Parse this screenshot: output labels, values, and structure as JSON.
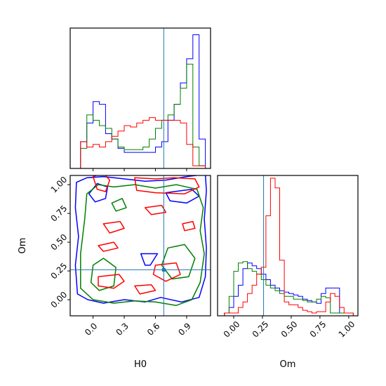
{
  "chart_data": {
    "type": "corner",
    "parameters": [
      "H0",
      "Om"
    ],
    "truth": {
      "H0": 0.68,
      "Om": 0.26
    },
    "truth_color": "#1f77b4",
    "series_colors": [
      "#0000ff",
      "#008000",
      "#ff0000"
    ],
    "axes": {
      "H0": {
        "label": "H0",
        "range": [
          -0.22,
          1.13
        ],
        "ticks": [
          0.0,
          0.3,
          0.6,
          0.9
        ],
        "tick_labels": [
          "0.0",
          "0.3",
          "0.6",
          "0.9"
        ]
      },
      "Om": {
        "label": "Om",
        "range": [
          -0.14,
          1.08
        ],
        "ticks": [
          0.0,
          0.25,
          0.5,
          0.75,
          1.0
        ],
        "tick_labels": [
          "0.00",
          "0.25",
          "0.50",
          "0.75",
          "1.00"
        ]
      }
    },
    "hist_H0": {
      "bin_edges": [
        -0.12,
        -0.06,
        0.0,
        0.06,
        0.12,
        0.18,
        0.24,
        0.3,
        0.36,
        0.42,
        0.48,
        0.54,
        0.6,
        0.66,
        0.72,
        0.78,
        0.84,
        0.9,
        0.96,
        1.02,
        1.08
      ],
      "series": [
        {
          "color": "#0000ff",
          "values": [
            0.2,
            0.34,
            0.5,
            0.48,
            0.26,
            0.22,
            0.15,
            0.12,
            0.12,
            0.12,
            0.12,
            0.12,
            0.16,
            0.2,
            0.36,
            0.48,
            0.64,
            0.82,
            1.0,
            0.22
          ]
        },
        {
          "color": "#008000",
          "values": [
            0.15,
            0.4,
            0.36,
            0.32,
            0.3,
            0.22,
            0.16,
            0.14,
            0.14,
            0.14,
            0.16,
            0.22,
            0.3,
            0.36,
            0.4,
            0.48,
            0.6,
            0.78,
            0.16,
            0.02
          ]
        },
        {
          "color": "#ff0000",
          "values": [
            0.2,
            0.16,
            0.18,
            0.16,
            0.2,
            0.24,
            0.28,
            0.32,
            0.31,
            0.34,
            0.36,
            0.38,
            0.36,
            0.36,
            0.36,
            0.36,
            0.34,
            0.18,
            0.02,
            0.02
          ]
        }
      ]
    },
    "hist_Om": {
      "bin_edges": [
        -0.08,
        -0.04,
        0.0,
        0.04,
        0.08,
        0.12,
        0.16,
        0.2,
        0.24,
        0.28,
        0.32,
        0.36,
        0.4,
        0.44,
        0.48,
        0.52,
        0.56,
        0.6,
        0.64,
        0.68,
        0.72,
        0.76,
        0.8,
        0.84,
        0.88,
        0.92,
        0.96,
        1.0,
        1.04
      ],
      "series": [
        {
          "color": "#0000ff",
          "values": [
            0.02,
            0.06,
            0.14,
            0.22,
            0.34,
            0.38,
            0.36,
            0.34,
            0.3,
            0.26,
            0.22,
            0.2,
            0.18,
            0.17,
            0.16,
            0.15,
            0.14,
            0.12,
            0.11,
            0.1,
            0.09,
            0.16,
            0.2,
            0.2,
            0.2,
            0.02,
            0.02,
            0.02
          ]
        },
        {
          "color": "#008000",
          "values": [
            0.02,
            0.14,
            0.32,
            0.38,
            0.39,
            0.34,
            0.32,
            0.3,
            0.26,
            0.22,
            0.2,
            0.18,
            0.16,
            0.14,
            0.14,
            0.12,
            0.12,
            0.11,
            0.1,
            0.1,
            0.12,
            0.14,
            0.13,
            0.02,
            0.02,
            0.02,
            0.02,
            0.02
          ]
        },
        {
          "color": "#ff0000",
          "values": [
            0.02,
            0.02,
            0.02,
            0.06,
            0.1,
            0.16,
            0.22,
            0.3,
            0.35,
            0.72,
            0.99,
            0.92,
            0.4,
            0.1,
            0.08,
            0.08,
            0.06,
            0.04,
            0.03,
            0.02,
            0.03,
            0.03,
            0.1,
            0.16,
            0.14,
            0.06,
            0.02,
            0.02
          ]
        }
      ]
    },
    "contours": [
      {
        "color": "#0000ff",
        "paths": [
          [
            [
              -0.16,
              1.02
            ],
            [
              -0.06,
              1.06
            ],
            [
              0.1,
              1.07
            ],
            [
              0.3,
              1.05
            ],
            [
              0.5,
              1.03
            ],
            [
              0.7,
              1.04
            ],
            [
              0.9,
              1.07
            ],
            [
              1.08,
              1.09
            ],
            [
              1.09,
              0.95
            ],
            [
              1.07,
              0.7
            ],
            [
              1.09,
              0.45
            ],
            [
              1.08,
              0.2
            ],
            [
              1.02,
              0.02
            ],
            [
              0.85,
              -0.02
            ],
            [
              0.65,
              0.02
            ],
            [
              0.5,
              -0.02
            ],
            [
              0.3,
              0.0
            ],
            [
              0.1,
              -0.03
            ],
            [
              -0.05,
              0.0
            ],
            [
              -0.15,
              0.05
            ],
            [
              -0.17,
              0.3
            ],
            [
              -0.14,
              0.55
            ],
            [
              -0.17,
              0.8
            ],
            [
              -0.16,
              1.02
            ]
          ],
          [
            [
              -0.04,
              0.92
            ],
            [
              0.04,
              1.01
            ],
            [
              0.14,
              0.98
            ],
            [
              0.12,
              0.88
            ],
            [
              0.02,
              0.85
            ],
            [
              -0.04,
              0.92
            ]
          ],
          [
            [
              0.46,
              0.4
            ],
            [
              0.62,
              0.4
            ],
            [
              0.55,
              0.3
            ],
            [
              0.5,
              0.3
            ],
            [
              0.46,
              0.4
            ]
          ],
          [
            [
              0.7,
              0.93
            ],
            [
              0.95,
              0.96
            ],
            [
              1.02,
              0.9
            ],
            [
              0.9,
              0.84
            ],
            [
              0.74,
              0.86
            ],
            [
              0.7,
              0.93
            ]
          ]
        ]
      },
      {
        "color": "#008000",
        "paths": [
          [
            [
              -0.06,
              0.92
            ],
            [
              0.05,
              1.0
            ],
            [
              0.2,
              0.98
            ],
            [
              0.4,
              1.0
            ],
            [
              0.6,
              0.97
            ],
            [
              0.8,
              1.0
            ],
            [
              1.0,
              0.96
            ],
            [
              1.06,
              0.8
            ],
            [
              1.03,
              0.6
            ],
            [
              1.07,
              0.4
            ],
            [
              1.03,
              0.15
            ],
            [
              0.95,
              0.0
            ],
            [
              0.8,
              -0.05
            ],
            [
              0.6,
              -0.02
            ],
            [
              0.4,
              -0.01
            ],
            [
              0.2,
              -0.03
            ],
            [
              0.0,
              0.0
            ],
            [
              -0.12,
              0.1
            ],
            [
              -0.12,
              0.4
            ],
            [
              -0.08,
              0.7
            ],
            [
              -0.06,
              0.92
            ]
          ],
          [
            [
              0.0,
              0.3
            ],
            [
              0.1,
              0.36
            ],
            [
              0.22,
              0.28
            ],
            [
              0.2,
              0.12
            ],
            [
              0.06,
              0.08
            ],
            [
              -0.02,
              0.15
            ],
            [
              0.0,
              0.3
            ]
          ],
          [
            [
              0.72,
              0.45
            ],
            [
              0.88,
              0.48
            ],
            [
              0.98,
              0.36
            ],
            [
              0.92,
              0.2
            ],
            [
              0.76,
              0.18
            ],
            [
              0.66,
              0.3
            ],
            [
              0.72,
              0.45
            ]
          ],
          [
            [
              0.18,
              0.84
            ],
            [
              0.28,
              0.88
            ],
            [
              0.32,
              0.8
            ],
            [
              0.22,
              0.77
            ],
            [
              0.18,
              0.84
            ]
          ]
        ]
      },
      {
        "color": "#ff0000",
        "paths": [
          [
            [
              0.0,
              1.07
            ],
            [
              0.1,
              1.1
            ],
            [
              0.16,
              1.04
            ],
            [
              0.12,
              0.94
            ],
            [
              0.04,
              0.96
            ],
            [
              0.0,
              1.07
            ]
          ],
          [
            [
              0.4,
              1.06
            ],
            [
              0.6,
              1.05
            ],
            [
              0.78,
              1.06
            ],
            [
              0.98,
              1.05
            ],
            [
              1.02,
              0.98
            ],
            [
              0.88,
              0.92
            ],
            [
              0.6,
              0.93
            ],
            [
              0.42,
              0.95
            ],
            [
              0.4,
              1.06
            ]
          ],
          [
            [
              0.05,
              0.2
            ],
            [
              0.25,
              0.22
            ],
            [
              0.3,
              0.16
            ],
            [
              0.2,
              0.1
            ],
            [
              0.05,
              0.12
            ],
            [
              0.05,
              0.2
            ]
          ],
          [
            [
              0.1,
              0.66
            ],
            [
              0.26,
              0.68
            ],
            [
              0.3,
              0.62
            ],
            [
              0.16,
              0.58
            ],
            [
              0.1,
              0.66
            ]
          ],
          [
            [
              0.05,
              0.47
            ],
            [
              0.2,
              0.5
            ],
            [
              0.24,
              0.45
            ],
            [
              0.1,
              0.42
            ],
            [
              0.05,
              0.47
            ]
          ],
          [
            [
              0.6,
              0.3
            ],
            [
              0.8,
              0.32
            ],
            [
              0.84,
              0.22
            ],
            [
              0.7,
              0.16
            ],
            [
              0.58,
              0.22
            ],
            [
              0.6,
              0.3
            ]
          ],
          [
            [
              0.4,
              0.12
            ],
            [
              0.56,
              0.13
            ],
            [
              0.6,
              0.08
            ],
            [
              0.45,
              0.05
            ],
            [
              0.4,
              0.12
            ]
          ],
          [
            [
              0.86,
              0.66
            ],
            [
              0.96,
              0.68
            ],
            [
              0.98,
              0.62
            ],
            [
              0.88,
              0.6
            ],
            [
              0.86,
              0.66
            ]
          ],
          [
            [
              0.5,
              0.8
            ],
            [
              0.66,
              0.82
            ],
            [
              0.7,
              0.76
            ],
            [
              0.56,
              0.74
            ],
            [
              0.5,
              0.8
            ]
          ]
        ]
      }
    ]
  }
}
